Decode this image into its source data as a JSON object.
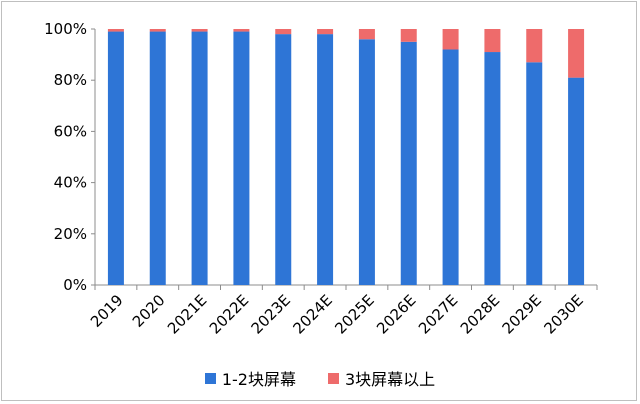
{
  "chart_data": {
    "type": "bar",
    "stacked": true,
    "categories": [
      "2019",
      "2020",
      "2021E",
      "2022E",
      "2023E",
      "2024E",
      "2025E",
      "2026E",
      "2027E",
      "2028E",
      "2029E",
      "2030E"
    ],
    "series": [
      {
        "name": "1-2块屏幕",
        "color": "#2e75d6",
        "values": [
          99,
          99,
          99,
          99,
          98,
          98,
          96,
          95,
          92,
          91,
          87,
          81
        ]
      },
      {
        "name": "3块屏幕以上",
        "color": "#ee6b6b",
        "values": [
          1,
          1,
          1,
          1,
          2,
          2,
          4,
          5,
          8,
          9,
          13,
          19
        ]
      }
    ],
    "ylim": [
      0,
      100
    ],
    "yticks": [
      "0%",
      "20%",
      "40%",
      "60%",
      "80%",
      "100%"
    ],
    "legend_position": "bottom",
    "grid": false
  }
}
